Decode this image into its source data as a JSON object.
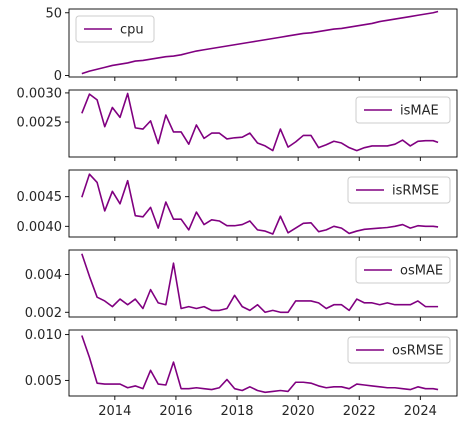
{
  "chart_data": [
    {
      "type": "line",
      "color": "#800080",
      "legend_position": "upper-left",
      "xlim": [
        2012.5,
        2025.2
      ],
      "ylim": [
        -1.2,
        53
      ],
      "yticks": [
        0,
        50
      ],
      "ytick_labels": [
        "0",
        "50"
      ],
      "series": [
        {
          "name": "cpu",
          "x": [
            2012.92,
            2013.17,
            2013.42,
            2013.67,
            2013.92,
            2014.17,
            2014.42,
            2014.67,
            2014.92,
            2015.17,
            2015.42,
            2015.67,
            2015.92,
            2016.17,
            2016.42,
            2016.67,
            2016.92,
            2017.17,
            2017.42,
            2017.67,
            2017.92,
            2018.17,
            2018.42,
            2018.67,
            2018.92,
            2019.17,
            2019.42,
            2019.67,
            2019.92,
            2020.17,
            2020.42,
            2020.67,
            2020.92,
            2021.17,
            2021.42,
            2021.67,
            2021.92,
            2022.17,
            2022.42,
            2022.67,
            2022.92,
            2023.17,
            2023.42,
            2023.67,
            2023.92,
            2024.17,
            2024.42,
            2024.58
          ],
          "values": [
            1.5,
            3.5,
            5,
            6.5,
            8,
            9,
            10,
            11.5,
            12,
            13,
            14,
            15,
            15.5,
            16.5,
            18,
            19.5,
            20.5,
            21.5,
            22.5,
            23.5,
            24.5,
            25.5,
            26.5,
            27.5,
            28.5,
            29.5,
            30.5,
            31.5,
            32.5,
            33.5,
            34,
            35,
            36,
            37,
            37.5,
            38.5,
            39.5,
            40.5,
            41.5,
            43,
            44,
            45,
            46,
            47,
            48,
            49,
            50,
            51
          ]
        }
      ]
    },
    {
      "type": "line",
      "color": "#800080",
      "legend_position": "upper-right",
      "xlim": [
        2012.5,
        2025.2
      ],
      "ylim": [
        0.0019,
        0.00305
      ],
      "yticks": [
        0.0025,
        0.003
      ],
      "ytick_labels": [
        "0.0025",
        "0.0030"
      ],
      "series": [
        {
          "name": "isMAE",
          "x": [
            2012.92,
            2013.17,
            2013.42,
            2013.67,
            2013.92,
            2014.17,
            2014.42,
            2014.67,
            2014.92,
            2015.17,
            2015.42,
            2015.67,
            2015.92,
            2016.17,
            2016.42,
            2016.67,
            2016.92,
            2017.17,
            2017.42,
            2017.67,
            2017.92,
            2018.17,
            2018.42,
            2018.67,
            2018.92,
            2019.17,
            2019.42,
            2019.67,
            2019.92,
            2020.17,
            2020.42,
            2020.67,
            2020.92,
            2021.17,
            2021.42,
            2021.67,
            2021.92,
            2022.17,
            2022.42,
            2022.67,
            2022.92,
            2023.17,
            2023.42,
            2023.67,
            2023.92,
            2024.17,
            2024.42,
            2024.58
          ],
          "values": [
            0.00265,
            0.00298,
            0.00288,
            0.00242,
            0.00275,
            0.00258,
            0.00299,
            0.0024,
            0.00238,
            0.00252,
            0.00213,
            0.00262,
            0.00233,
            0.00233,
            0.00212,
            0.00245,
            0.00222,
            0.00231,
            0.00231,
            0.00221,
            0.00223,
            0.00224,
            0.00231,
            0.00214,
            0.00209,
            0.00201,
            0.00238,
            0.00207,
            0.00216,
            0.00227,
            0.00227,
            0.00206,
            0.00211,
            0.00217,
            0.00214,
            0.00206,
            0.00201,
            0.00206,
            0.00209,
            0.00209,
            0.00209,
            0.00212,
            0.00219,
            0.00209,
            0.00217,
            0.00218,
            0.00218,
            0.00215
          ]
        }
      ]
    },
    {
      "type": "line",
      "color": "#800080",
      "legend_position": "upper-right",
      "xlim": [
        2012.5,
        2025.2
      ],
      "ylim": [
        0.00382,
        0.00495
      ],
      "yticks": [
        0.004,
        0.0045
      ],
      "ytick_labels": [
        "0.0040",
        "0.0045"
      ],
      "series": [
        {
          "name": "isRMSE",
          "x": [
            2012.92,
            2013.17,
            2013.42,
            2013.67,
            2013.92,
            2014.17,
            2014.42,
            2014.67,
            2014.92,
            2015.17,
            2015.42,
            2015.67,
            2015.92,
            2016.17,
            2016.42,
            2016.67,
            2016.92,
            2017.17,
            2017.42,
            2017.67,
            2017.92,
            2018.17,
            2018.42,
            2018.67,
            2018.92,
            2019.17,
            2019.42,
            2019.67,
            2019.92,
            2020.17,
            2020.42,
            2020.67,
            2020.92,
            2021.17,
            2021.42,
            2021.67,
            2021.92,
            2022.17,
            2022.42,
            2022.67,
            2022.92,
            2023.17,
            2023.42,
            2023.67,
            2023.92,
            2024.17,
            2024.42,
            2024.58
          ],
          "values": [
            0.00449,
            0.00488,
            0.00474,
            0.00426,
            0.00459,
            0.00438,
            0.00477,
            0.00418,
            0.00416,
            0.00432,
            0.00397,
            0.00441,
            0.00412,
            0.00412,
            0.00394,
            0.00424,
            0.00403,
            0.00411,
            0.00409,
            0.00401,
            0.00401,
            0.00403,
            0.00409,
            0.00394,
            0.00392,
            0.00387,
            0.00417,
            0.00389,
            0.00397,
            0.00405,
            0.00406,
            0.00391,
            0.00394,
            0.004,
            0.00397,
            0.00388,
            0.00392,
            0.00395,
            0.00396,
            0.00397,
            0.00398,
            0.004,
            0.00403,
            0.00397,
            0.00401,
            0.004,
            0.004,
            0.00399
          ]
        }
      ]
    },
    {
      "type": "line",
      "color": "#800080",
      "legend_position": "upper-right",
      "xlim": [
        2012.5,
        2025.2
      ],
      "ylim": [
        0.00175,
        0.0053
      ],
      "yticks": [
        0.002,
        0.004
      ],
      "ytick_labels": [
        "0.002",
        "0.004"
      ],
      "series": [
        {
          "name": "osMAE",
          "x": [
            2012.92,
            2013.17,
            2013.42,
            2013.67,
            2013.92,
            2014.17,
            2014.42,
            2014.67,
            2014.92,
            2015.17,
            2015.42,
            2015.67,
            2015.92,
            2016.17,
            2016.42,
            2016.67,
            2016.92,
            2017.17,
            2017.42,
            2017.67,
            2017.92,
            2018.17,
            2018.42,
            2018.67,
            2018.92,
            2019.17,
            2019.42,
            2019.67,
            2019.92,
            2020.17,
            2020.42,
            2020.67,
            2020.92,
            2021.17,
            2021.42,
            2021.67,
            2021.92,
            2022.17,
            2022.42,
            2022.67,
            2022.92,
            2023.17,
            2023.42,
            2023.67,
            2023.92,
            2024.17,
            2024.42,
            2024.58
          ],
          "values": [
            0.0051,
            0.0039,
            0.0028,
            0.0026,
            0.0023,
            0.0027,
            0.0024,
            0.0027,
            0.0022,
            0.0032,
            0.0025,
            0.0024,
            0.0046,
            0.0022,
            0.0023,
            0.0022,
            0.0023,
            0.0021,
            0.0021,
            0.0022,
            0.0029,
            0.0023,
            0.0021,
            0.0024,
            0.002,
            0.0021,
            0.002,
            0.002,
            0.0026,
            0.0026,
            0.0026,
            0.0025,
            0.0022,
            0.0024,
            0.0024,
            0.0021,
            0.0027,
            0.0025,
            0.0025,
            0.0024,
            0.0025,
            0.0024,
            0.0024,
            0.0024,
            0.0026,
            0.0023,
            0.0023,
            0.0023
          ]
        }
      ]
    },
    {
      "type": "line",
      "color": "#800080",
      "legend_position": "upper-right",
      "xlim": [
        2012.5,
        2025.2
      ],
      "ylim": [
        0.0033,
        0.0105
      ],
      "yticks": [
        0.005,
        0.01
      ],
      "ytick_labels": [
        "0.005",
        "0.010"
      ],
      "series": [
        {
          "name": "osRMSE",
          "x": [
            2012.92,
            2013.17,
            2013.42,
            2013.67,
            2013.92,
            2014.17,
            2014.42,
            2014.67,
            2014.92,
            2015.17,
            2015.42,
            2015.67,
            2015.92,
            2016.17,
            2016.42,
            2016.67,
            2016.92,
            2017.17,
            2017.42,
            2017.67,
            2017.92,
            2018.17,
            2018.42,
            2018.67,
            2018.92,
            2019.17,
            2019.42,
            2019.67,
            2019.92,
            2020.17,
            2020.42,
            2020.67,
            2020.92,
            2021.17,
            2021.42,
            2021.67,
            2021.92,
            2022.17,
            2022.42,
            2022.67,
            2022.92,
            2023.17,
            2023.42,
            2023.67,
            2023.92,
            2024.17,
            2024.42,
            2024.58
          ],
          "values": [
            0.0099,
            0.0075,
            0.0047,
            0.0046,
            0.0046,
            0.0046,
            0.0042,
            0.0044,
            0.0041,
            0.0061,
            0.0046,
            0.0045,
            0.007,
            0.0041,
            0.0041,
            0.0042,
            0.0041,
            0.004,
            0.0042,
            0.0051,
            0.0041,
            0.0039,
            0.0043,
            0.0039,
            0.0037,
            0.0038,
            0.0039,
            0.0038,
            0.0048,
            0.0048,
            0.0047,
            0.0044,
            0.0042,
            0.0043,
            0.0043,
            0.0041,
            0.0046,
            0.0045,
            0.0044,
            0.0043,
            0.0042,
            0.0042,
            0.0041,
            0.004,
            0.0043,
            0.0041,
            0.0041,
            0.004
          ]
        }
      ]
    }
  ],
  "xticks": [
    2014,
    2016,
    2018,
    2020,
    2022,
    2024
  ],
  "xtick_labels": [
    "2014",
    "2016",
    "2018",
    "2020",
    "2022",
    "2024"
  ]
}
